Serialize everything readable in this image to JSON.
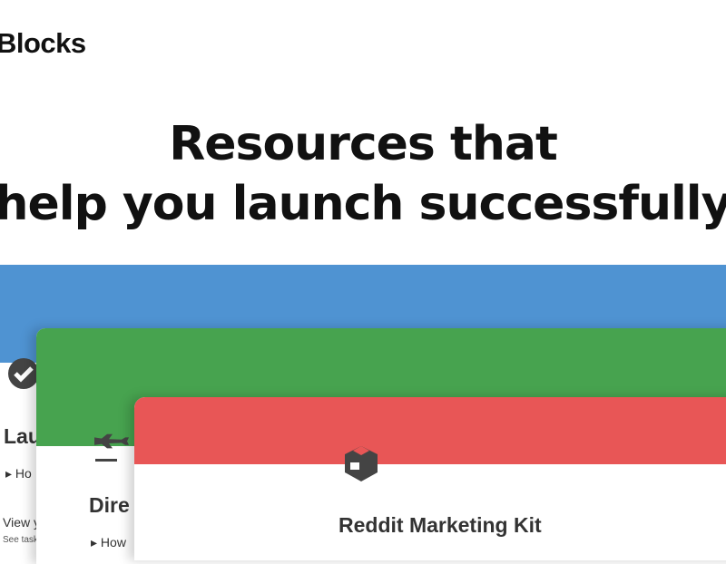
{
  "brand": {
    "logo": "Blocks"
  },
  "hero": {
    "line1": "Resources that",
    "line2": "help you launch successfully"
  },
  "cards": [
    {
      "color": "#4f93d2",
      "icon": "check-circle-icon",
      "title": "Lau",
      "toggle": "Ho",
      "subtitle": "View y",
      "note": "See task"
    },
    {
      "color": "#47a34f",
      "icon": "airplane-icon",
      "title": "Dire",
      "toggle": "How"
    },
    {
      "color": "#e85656",
      "icon": "box-icon",
      "title": "Reddit Marketing Kit"
    }
  ]
}
